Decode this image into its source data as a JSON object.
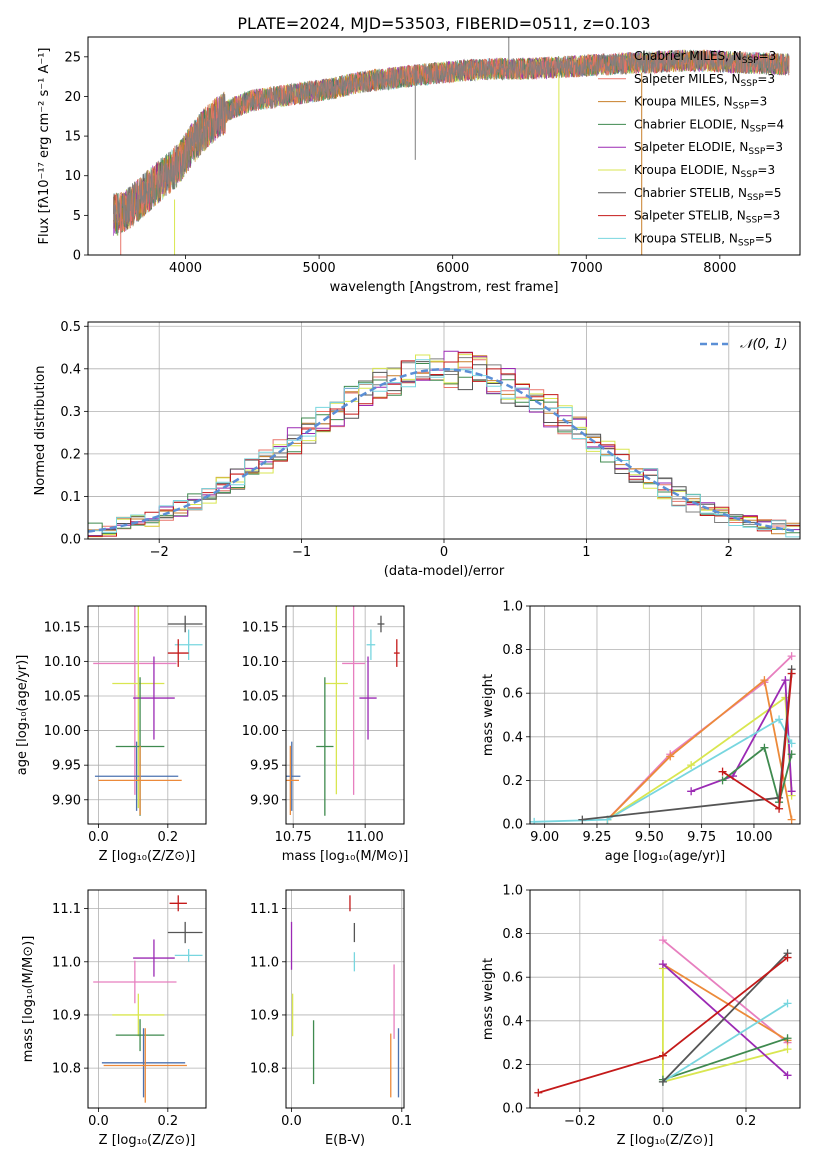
{
  "colors": {
    "chabrier_miles": "#7f7f7f",
    "salpeter_miles": "#e8746a",
    "kroupa_miles": "#c87f2a",
    "chabrier_elodie": "#3f8a4f",
    "salpeter_elodie": "#9b2ab4",
    "kroupa_elodie": "#d9e650",
    "chabrier_stelib": "#555555",
    "salpeter_stelib": "#c41a1a",
    "kroupa_stelib": "#78d6df",
    "extra_pink": "#e77fbf",
    "extra_blue": "#4c72b0",
    "extra_orange": "#ec8a3a",
    "normal_curve": "#5b8fd6",
    "grid": "#b0b0b0"
  },
  "chart_data": [
    {
      "id": "spectrum",
      "type": "line",
      "title": "PLATE=2024, MJD=53503, FIBERID=0511, z=0.103",
      "xlabel": "wavelength [Angstrom, rest frame]",
      "ylabel": "Flux [fλ10⁻¹⁷ erg cm⁻² s⁻¹ A⁻¹]",
      "xlim": [
        3270,
        8600
      ],
      "ylim": [
        0,
        27.5
      ],
      "xticks": [
        "4000",
        "5000",
        "6000",
        "7000",
        "8000"
      ],
      "yticks": [
        "0",
        "5",
        "10",
        "15",
        "20",
        "25"
      ],
      "legend_position": "top-right",
      "spectrum_envelope": {
        "x": [
          3460,
          3550,
          3650,
          3750,
          3850,
          3950,
          4050,
          4150,
          4250,
          4350,
          4500,
          4700,
          4900,
          5100,
          5300,
          5500,
          5700,
          5900,
          6100,
          6300,
          6500,
          6700,
          6900,
          7100,
          7300,
          7500,
          7700,
          7900,
          8100,
          8300,
          8520
        ],
        "y": [
          5.0,
          5.5,
          7.0,
          8.5,
          10.0,
          11.5,
          14.0,
          16.0,
          17.5,
          18.5,
          19.5,
          20.0,
          20.5,
          21.0,
          21.8,
          22.2,
          22.6,
          23.0,
          23.3,
          23.5,
          23.5,
          23.6,
          23.8,
          24.0,
          24.2,
          24.3,
          24.5,
          24.5,
          24.3,
          24.2,
          24.0
        ]
      },
      "series": [
        {
          "name": "Chabrier MILES, N",
          "sub": "SSP",
          "suffix": "=3",
          "color_key": "chabrier_miles"
        },
        {
          "name": "Salpeter MILES, N",
          "sub": "SSP",
          "suffix": "=3",
          "color_key": "salpeter_miles"
        },
        {
          "name": "Kroupa MILES, N",
          "sub": "SSP",
          "suffix": "=3",
          "color_key": "kroupa_miles"
        },
        {
          "name": "Chabrier ELODIE, N",
          "sub": "SSP",
          "suffix": "=4",
          "color_key": "chabrier_elodie"
        },
        {
          "name": "Salpeter ELODIE, N",
          "sub": "SSP",
          "suffix": "=3",
          "color_key": "salpeter_elodie"
        },
        {
          "name": "Kroupa ELODIE, N",
          "sub": "SSP",
          "suffix": "=3",
          "color_key": "kroupa_elodie"
        },
        {
          "name": "Chabrier STELIB, N",
          "sub": "SSP",
          "suffix": "=5",
          "color_key": "chabrier_stelib"
        },
        {
          "name": "Salpeter STELIB, N",
          "sub": "SSP",
          "suffix": "=3",
          "color_key": "salpeter_stelib"
        },
        {
          "name": "Kroupa STELIB, N",
          "sub": "SSP",
          "suffix": "=5",
          "color_key": "kroupa_stelib"
        }
      ]
    },
    {
      "id": "residuals",
      "type": "line",
      "xlabel": "(data-model)/error",
      "ylabel": "Normed distribution",
      "xlim": [
        -2.5,
        2.5
      ],
      "ylim": [
        0,
        0.51
      ],
      "xticks": [
        "−2",
        "−1",
        "0",
        "1",
        "2"
      ],
      "yticks": [
        "0.0",
        "0.1",
        "0.2",
        "0.3",
        "0.4",
        "0.5"
      ],
      "legend": "𝒩(0, 1)",
      "legend_position": "top-right",
      "normal_curve": {
        "mean": 0,
        "sigma": 1
      },
      "bin_width": 0.1,
      "histogram_bins_x": [
        -2.5,
        2.5
      ]
    },
    {
      "id": "age_vs_z",
      "type": "scatter",
      "xlabel": "Z [log₁₀(Z/Z⊙)]",
      "ylabel": "age  [log₁₀(age/yr)]",
      "xlim": [
        -0.03,
        0.31
      ],
      "ylim": [
        9.865,
        10.18
      ],
      "xticks": [
        "0.0",
        "0.2"
      ],
      "yticks": [
        "9.90",
        "9.95",
        "10.00",
        "10.05",
        "10.10",
        "10.15"
      ],
      "points": [
        {
          "color_key": "chabrier_stelib",
          "x": 0.25,
          "y": 10.154,
          "xerr": 0.05,
          "yerr": 0.012
        },
        {
          "color_key": "kroupa_stelib",
          "x": 0.26,
          "y": 10.124,
          "xerr": 0.04,
          "yerr": 0.022
        },
        {
          "color_key": "salpeter_stelib",
          "x": 0.23,
          "y": 10.112,
          "xerr": 0.03,
          "yerr": 0.02
        },
        {
          "color_key": "extra_pink",
          "x": 0.105,
          "y": 10.097,
          "xerr": 0.12,
          "yerr": 0.19
        },
        {
          "color_key": "kroupa_elodie",
          "x": 0.115,
          "y": 10.068,
          "xerr": 0.075,
          "yerr": 0.18
        },
        {
          "color_key": "salpeter_elodie",
          "x": 0.16,
          "y": 10.047,
          "xerr": 0.06,
          "yerr": 0.06
        },
        {
          "color_key": "chabrier_elodie",
          "x": 0.12,
          "y": 9.977,
          "xerr": 0.07,
          "yerr": 0.1
        },
        {
          "color_key": "extra_blue",
          "x": 0.11,
          "y": 9.934,
          "xerr": 0.12,
          "yerr": 0.05
        },
        {
          "color_key": "extra_orange",
          "x": 0.12,
          "y": 9.928,
          "xerr": 0.12,
          "yerr": 0.05
        }
      ]
    },
    {
      "id": "age_vs_mass",
      "type": "scatter",
      "xlabel": "mass [log₁₀(M/M⊙)]",
      "xlim": [
        10.725,
        11.135
      ],
      "ylim": [
        9.865,
        10.18
      ],
      "xticks": [
        "10.75",
        "11.00"
      ],
      "yticks": [
        "9.90",
        "9.95",
        "10.00",
        "10.05",
        "10.10",
        "10.15"
      ],
      "points": [
        {
          "color_key": "chabrier_stelib",
          "x": 11.055,
          "y": 10.154,
          "xerr": 0.012,
          "yerr": 0.012
        },
        {
          "color_key": "kroupa_stelib",
          "x": 11.02,
          "y": 10.124,
          "xerr": 0.015,
          "yerr": 0.022
        },
        {
          "color_key": "salpeter_stelib",
          "x": 11.11,
          "y": 10.112,
          "xerr": 0.01,
          "yerr": 0.02
        },
        {
          "color_key": "extra_pink",
          "x": 10.96,
          "y": 10.097,
          "xerr": 0.04,
          "yerr": 0.19
        },
        {
          "color_key": "kroupa_elodie",
          "x": 10.9,
          "y": 10.068,
          "xerr": 0.04,
          "yerr": 0.16
        },
        {
          "color_key": "salpeter_elodie",
          "x": 11.01,
          "y": 10.047,
          "xerr": 0.03,
          "yerr": 0.06
        },
        {
          "color_key": "chabrier_elodie",
          "x": 10.86,
          "y": 9.977,
          "xerr": 0.03,
          "yerr": 0.1
        },
        {
          "color_key": "extra_blue",
          "x": 10.745,
          "y": 9.934,
          "xerr": 0.03,
          "yerr": 0.05
        },
        {
          "color_key": "extra_orange",
          "x": 10.74,
          "y": 9.928,
          "xerr": 0.03,
          "yerr": 0.05
        }
      ]
    },
    {
      "id": "massweight_vs_age",
      "type": "line",
      "xlabel": "age  [log₁₀(age/yr)]",
      "ylabel": "mass weight",
      "xlim": [
        8.93,
        10.22
      ],
      "ylim": [
        0,
        1.0
      ],
      "xticks": [
        "9.00",
        "9.25",
        "9.50",
        "9.75",
        "10.00"
      ],
      "yticks": [
        "0.0",
        "0.2",
        "0.4",
        "0.6",
        "0.8",
        "1.0"
      ],
      "series": [
        {
          "color_key": "extra_pink",
          "x": [
            9.3,
            9.6,
            10.05,
            10.18
          ],
          "y": [
            0.02,
            0.32,
            0.65,
            0.77
          ]
        },
        {
          "color_key": "extra_orange",
          "x": [
            9.3,
            9.6,
            10.05,
            10.18
          ],
          "y": [
            0.02,
            0.31,
            0.66,
            0.02
          ]
        },
        {
          "color_key": "kroupa_elodie",
          "x": [
            9.3,
            9.7,
            10.15,
            10.18
          ],
          "y": [
            0.02,
            0.27,
            0.58,
            0.13
          ]
        },
        {
          "color_key": "salpeter_elodie",
          "x": [
            9.7,
            9.9,
            10.15,
            10.18
          ],
          "y": [
            0.15,
            0.22,
            0.66,
            0.15
          ]
        },
        {
          "color_key": "chabrier_elodie",
          "x": [
            9.85,
            10.05,
            10.12,
            10.18
          ],
          "y": [
            0.2,
            0.35,
            0.1,
            0.32
          ]
        },
        {
          "color_key": "kroupa_stelib",
          "x": [
            8.95,
            9.3,
            10.12,
            10.18
          ],
          "y": [
            0.01,
            0.02,
            0.48,
            0.37
          ]
        },
        {
          "color_key": "chabrier_stelib",
          "x": [
            9.18,
            10.12,
            10.18
          ],
          "y": [
            0.02,
            0.12,
            0.71
          ]
        },
        {
          "color_key": "salpeter_stelib",
          "x": [
            9.85,
            10.12,
            10.18
          ],
          "y": [
            0.24,
            0.07,
            0.69
          ]
        }
      ]
    },
    {
      "id": "mass_vs_z",
      "type": "scatter",
      "xlabel": "Z [log₁₀(Z/Z⊙)]",
      "ylabel": "mass [log₁₀(M/M⊙)]",
      "xlim": [
        -0.03,
        0.31
      ],
      "ylim": [
        10.725,
        11.135
      ],
      "xticks": [
        "0.0",
        "0.2"
      ],
      "yticks": [
        "10.8",
        "10.9",
        "11.0",
        "11.1"
      ],
      "points": [
        {
          "color_key": "salpeter_stelib",
          "x": 0.23,
          "y": 11.11,
          "xerr": 0.025,
          "yerr": 0.015
        },
        {
          "color_key": "chabrier_stelib",
          "x": 0.25,
          "y": 11.055,
          "xerr": 0.05,
          "yerr": 0.02
        },
        {
          "color_key": "kroupa_stelib",
          "x": 0.26,
          "y": 11.012,
          "xerr": 0.04,
          "yerr": 0.012
        },
        {
          "color_key": "salpeter_elodie",
          "x": 0.16,
          "y": 11.007,
          "xerr": 0.06,
          "yerr": 0.035
        },
        {
          "color_key": "extra_pink",
          "x": 0.105,
          "y": 10.962,
          "xerr": 0.12,
          "yerr": 0.04
        },
        {
          "color_key": "kroupa_elodie",
          "x": 0.115,
          "y": 10.9,
          "xerr": 0.075,
          "yerr": 0.04
        },
        {
          "color_key": "chabrier_elodie",
          "x": 0.12,
          "y": 10.862,
          "xerr": 0.07,
          "yerr": 0.03
        },
        {
          "color_key": "extra_blue",
          "x": 0.13,
          "y": 10.81,
          "xerr": 0.12,
          "yerr": 0.065
        },
        {
          "color_key": "extra_orange",
          "x": 0.135,
          "y": 10.805,
          "xerr": 0.12,
          "yerr": 0.07
        }
      ]
    },
    {
      "id": "mass_vs_ebv",
      "type": "scatter",
      "xlabel": "E(B-V)",
      "xlim": [
        -0.005,
        0.102
      ],
      "ylim": [
        10.725,
        11.135
      ],
      "xticks": [
        "0.0",
        "0.1"
      ],
      "yticks": [
        "10.8",
        "10.9",
        "11.0",
        "11.1"
      ],
      "points": [
        {
          "color_key": "salpeter_stelib",
          "x": 0.053,
          "y": 11.11,
          "xerr": 0,
          "yerr": 0.015
        },
        {
          "color_key": "chabrier_stelib",
          "x": 0.057,
          "y": 11.055,
          "xerr": 0,
          "yerr": 0.018
        },
        {
          "color_key": "kroupa_stelib",
          "x": 0.057,
          "y": 11.0,
          "xerr": 0,
          "yerr": 0.018
        },
        {
          "color_key": "salpeter_elodie",
          "x": 0.0,
          "y": 11.03,
          "xerr": 0,
          "yerr": 0.045
        },
        {
          "color_key": "kroupa_elodie",
          "x": 0.001,
          "y": 10.9,
          "xerr": 0,
          "yerr": 0.04
        },
        {
          "color_key": "chabrier_elodie",
          "x": 0.02,
          "y": 10.83,
          "xerr": 0,
          "yerr": 0.06
        },
        {
          "color_key": "extra_pink",
          "x": 0.093,
          "y": 10.925,
          "xerr": 0,
          "yerr": 0.07
        },
        {
          "color_key": "extra_orange",
          "x": 0.09,
          "y": 10.805,
          "xerr": 0,
          "yerr": 0.06
        },
        {
          "color_key": "extra_blue",
          "x": 0.097,
          "y": 10.81,
          "xerr": 0,
          "yerr": 0.065
        }
      ]
    },
    {
      "id": "massweight_vs_z",
      "type": "line",
      "xlabel": "Z [log₁₀(Z/Z⊙)]",
      "ylabel": "mass weight",
      "xlim": [
        -0.32,
        0.33
      ],
      "ylim": [
        0,
        1.0
      ],
      "xticks": [
        "−0.2",
        "0.0",
        "0.2"
      ],
      "yticks": [
        "0.0",
        "0.2",
        "0.4",
        "0.6",
        "0.8",
        "1.0"
      ],
      "series": [
        {
          "color_key": "extra_pink",
          "x": [
            0.0,
            0.3
          ],
          "y": [
            0.77,
            0.3
          ]
        },
        {
          "color_key": "extra_orange",
          "x": [
            0.0,
            0.3
          ],
          "y": [
            0.66,
            0.31
          ]
        },
        {
          "color_key": "kroupa_elodie",
          "x": [
            0.0,
            0.0,
            0.3
          ],
          "y": [
            0.64,
            0.12,
            0.27
          ]
        },
        {
          "color_key": "salpeter_elodie",
          "x": [
            0.0,
            0.3
          ],
          "y": [
            0.66,
            0.15
          ]
        },
        {
          "color_key": "chabrier_elodie",
          "x": [
            0.0,
            0.3
          ],
          "y": [
            0.13,
            0.32
          ]
        },
        {
          "color_key": "kroupa_stelib",
          "x": [
            0.0,
            0.3
          ],
          "y": [
            0.12,
            0.48
          ]
        },
        {
          "color_key": "chabrier_stelib",
          "x": [
            0.0,
            0.3
          ],
          "y": [
            0.12,
            0.71
          ]
        },
        {
          "color_key": "salpeter_stelib",
          "x": [
            -0.3,
            0.0,
            0.3
          ],
          "y": [
            0.07,
            0.24,
            0.69
          ]
        }
      ]
    }
  ]
}
